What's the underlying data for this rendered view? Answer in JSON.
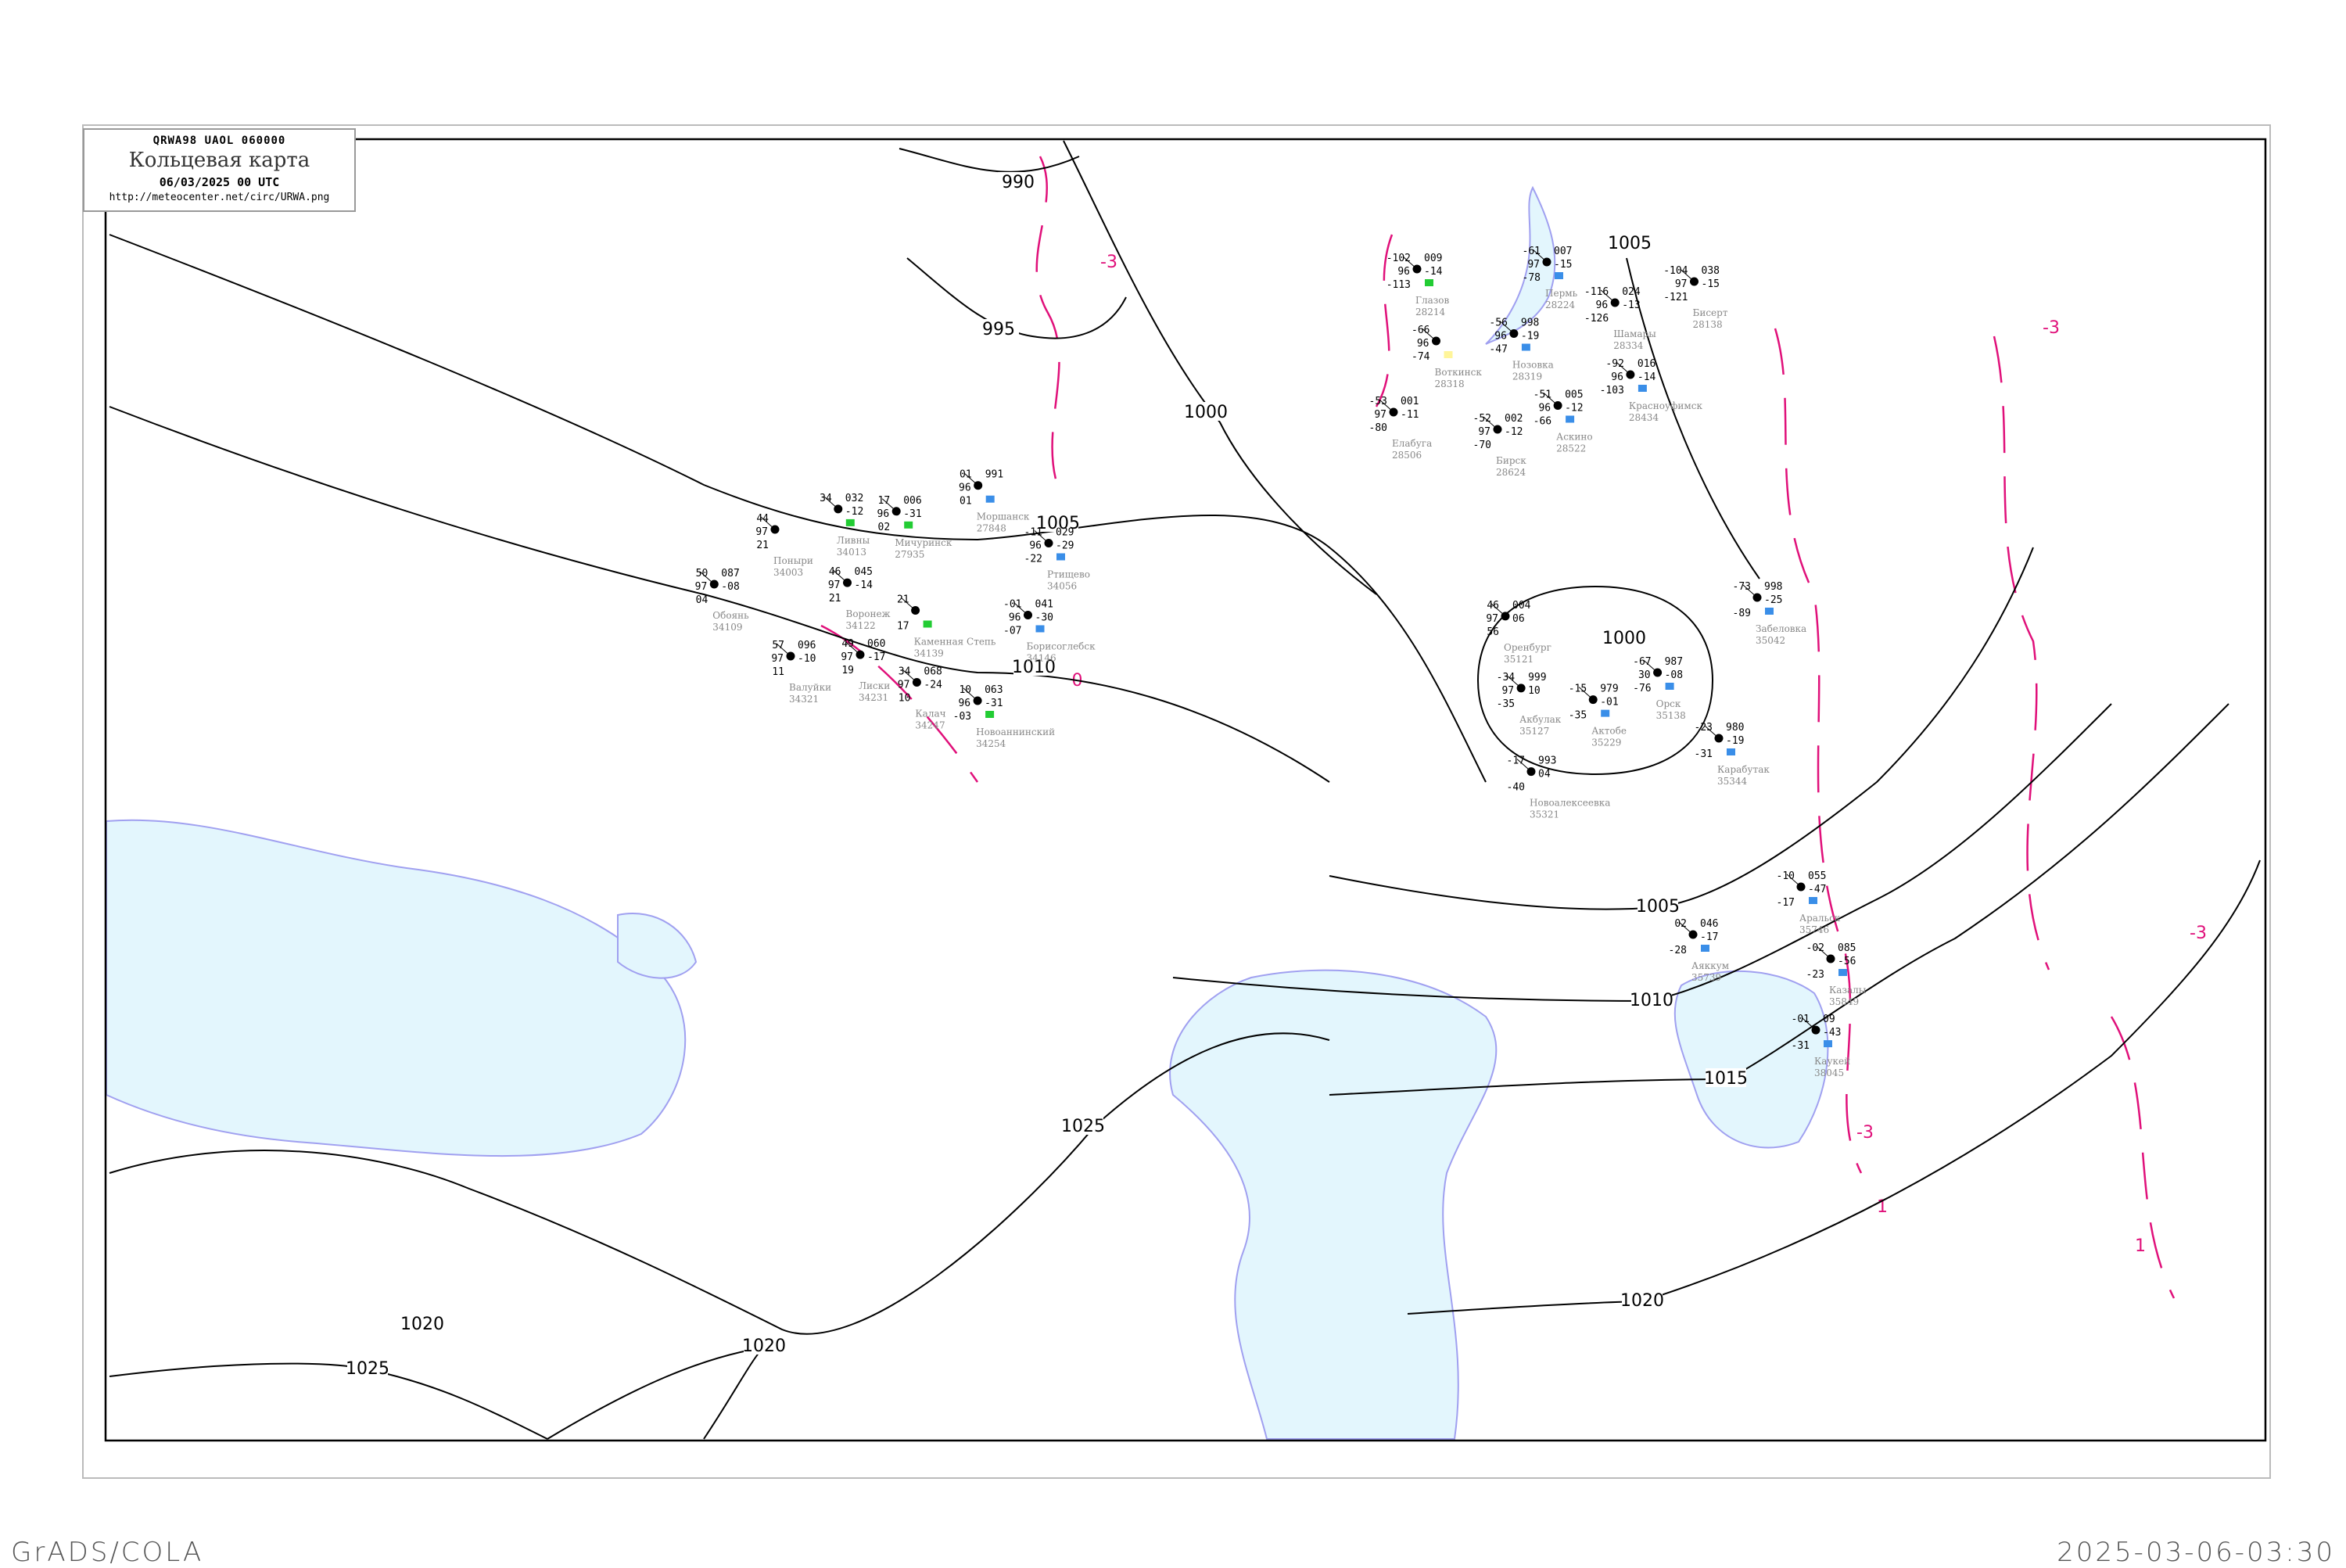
{
  "header": {
    "code": "QRWA98  UAOL  060000",
    "title": "Кольцевая карта",
    "date": "06/03/2025 00 UTC",
    "url": "http://meteocenter.net/circ/URWA.png"
  },
  "footer": {
    "left": "GrADS/COLA",
    "right": "2025-03-06-03:30"
  },
  "colors": {
    "isobar": "#000000",
    "isotherm": "#e0107a",
    "water": "#e3f6fd",
    "coast": "#a0a0f0",
    "river": "#1a9be8",
    "station_name": "#888888",
    "precip_snow": "#3a8ee8",
    "precip_green": "#22cc33",
    "precip_yellow": "#fff59a"
  },
  "isobars": [
    {
      "label": "990"
    },
    {
      "label": "995"
    },
    {
      "label": "1000"
    },
    {
      "label": "1005"
    },
    {
      "label": "1010"
    },
    {
      "label": "1025"
    },
    {
      "label": "1020"
    },
    {
      "label": "1005"
    },
    {
      "label": "1005"
    },
    {
      "label": "1010"
    },
    {
      "label": "1015"
    },
    {
      "label": "1020"
    },
    {
      "label": "1000"
    },
    {
      "label": "1025"
    },
    {
      "label": "1020"
    }
  ],
  "isotherm_labels": [
    "-3",
    "-3",
    "-3",
    "0",
    "1",
    "1",
    "-3"
  ],
  "stations": [
    {
      "name": "Пермь",
      "id": "28224",
      "t": "-61",
      "v": "97",
      "td": "-78",
      "p": "007",
      "dp": "-15",
      "precip": "snow"
    },
    {
      "name": "Воткинск",
      "id": "28318",
      "t": "-66",
      "v": "96",
      "td": "-74",
      "p": "",
      "dp": "",
      "precip": "yellow"
    },
    {
      "name": "Нозовка",
      "id": "28319",
      "t": "-56",
      "v": "96",
      "td": "-47",
      "p": "998",
      "dp": "-19",
      "precip": "snow"
    },
    {
      "name": "Глазов",
      "id": "28214",
      "t": "-102",
      "v": "96",
      "td": "-113",
      "p": "009",
      "dp": "-14",
      "precip": "green"
    },
    {
      "name": "Шамары",
      "id": "28334",
      "t": "-116",
      "v": "96",
      "td": "-126",
      "p": "024",
      "dp": "-13",
      "precip": ""
    },
    {
      "name": "Бисерт",
      "id": "28138",
      "t": "-104",
      "v": "97",
      "td": "-121",
      "p": "038",
      "dp": "-15",
      "precip": ""
    },
    {
      "name": "Красноуфимск",
      "id": "28434",
      "t": "-92",
      "v": "96",
      "td": "-103",
      "p": "016",
      "dp": "-14",
      "precip": "snow"
    },
    {
      "name": "Аскино",
      "id": "28522",
      "t": "-51",
      "v": "96",
      "td": "-66",
      "p": "005",
      "dp": "-12",
      "precip": "snow"
    },
    {
      "name": "Бирск",
      "id": "28624",
      "t": "-52",
      "v": "97",
      "td": "-70",
      "p": "002",
      "dp": "-12",
      "precip": ""
    },
    {
      "name": "Елабуга",
      "id": "28506",
      "t": "-53",
      "v": "97",
      "td": "-80",
      "p": "001",
      "dp": "-11",
      "precip": ""
    },
    {
      "name": "Забеловка",
      "id": "35042",
      "t": "-73",
      "v": "",
      "td": "-89",
      "p": "998",
      "dp": "-25",
      "precip": "snow"
    },
    {
      "name": "Оренбург",
      "id": "35121",
      "t": "46",
      "v": "97",
      "td": "56",
      "p": "004",
      "dp": "06",
      "precip": ""
    },
    {
      "name": "Акбулак",
      "id": "35127",
      "t": "-34",
      "v": "97",
      "td": "-35",
      "p": "999",
      "dp": "10",
      "precip": ""
    },
    {
      "name": "Орск",
      "id": "35138",
      "t": "-67",
      "v": "30",
      "td": "-76",
      "p": "987",
      "dp": "-08",
      "precip": "snow"
    },
    {
      "name": "Актобе",
      "id": "35229",
      "t": "-15",
      "v": "",
      "td": "-35",
      "p": "979",
      "dp": "-01",
      "precip": "snow"
    },
    {
      "name": "Новоалексеевка",
      "id": "35321",
      "t": "-17",
      "v": "",
      "td": "-40",
      "p": "993",
      "dp": "04",
      "precip": ""
    },
    {
      "name": "Карабутак",
      "id": "35344",
      "t": "-23",
      "v": "",
      "td": "-31",
      "p": "980",
      "dp": "-19",
      "precip": "snow"
    },
    {
      "name": "Аральск",
      "id": "35746",
      "t": "-10",
      "v": "",
      "td": "-17",
      "p": "055",
      "dp": "-47",
      "precip": "snow"
    },
    {
      "name": "Аяккум",
      "id": "35739",
      "t": "02",
      "v": "",
      "td": "-28",
      "p": "046",
      "dp": "-17",
      "precip": "snow"
    },
    {
      "name": "Казалы",
      "id": "35849",
      "t": "-02",
      "v": "",
      "td": "-23",
      "p": "085",
      "dp": "-56",
      "precip": "snow"
    },
    {
      "name": "Каукей",
      "id": "38045",
      "t": "-01",
      "v": "",
      "td": "-31",
      "p": "09",
      "dp": "-43",
      "precip": "snow"
    },
    {
      "name": "Поныри",
      "id": "34003",
      "t": "44",
      "v": "97",
      "td": "21",
      "p": "",
      "dp": "",
      "precip": ""
    },
    {
      "name": "Ливны",
      "id": "34013",
      "t": "34",
      "v": "",
      "td": "",
      "p": "032",
      "dp": "-12",
      "precip": "green"
    },
    {
      "name": "Мичуринск",
      "id": "27935",
      "t": "17",
      "v": "96",
      "td": "02",
      "p": "006",
      "dp": "-31",
      "precip": "green"
    },
    {
      "name": "Моршанск",
      "id": "27848",
      "t": "01",
      "v": "96",
      "td": "01",
      "p": "991",
      "dp": "",
      "precip": "snow"
    },
    {
      "name": "Обоянь",
      "id": "34109",
      "t": "50",
      "v": "97",
      "td": "04",
      "p": "087",
      "dp": "-08",
      "precip": ""
    },
    {
      "name": "Воронеж",
      "id": "34122",
      "t": "46",
      "v": "97",
      "td": "21",
      "p": "045",
      "dp": "-14",
      "precip": ""
    },
    {
      "name": "Лиски",
      "id": "34231",
      "t": "49",
      "v": "97",
      "td": "19",
      "p": "060",
      "dp": "-17",
      "precip": ""
    },
    {
      "name": "Каменная Степь",
      "id": "34139",
      "t": "21",
      "v": "",
      "td": "17",
      "p": "",
      "dp": "",
      "precip": "green"
    },
    {
      "name": "Борисоглебск",
      "id": "34146",
      "t": "-01",
      "v": "96",
      "td": "-07",
      "p": "041",
      "dp": "-30",
      "precip": "snow"
    },
    {
      "name": "Ртищево",
      "id": "34056",
      "t": "-11",
      "v": "96",
      "td": "-22",
      "p": "029",
      "dp": "-29",
      "precip": "snow"
    },
    {
      "name": "Калач",
      "id": "34247",
      "t": "34",
      "v": "97",
      "td": "10",
      "p": "068",
      "dp": "-24",
      "precip": ""
    },
    {
      "name": "Новоаннинский",
      "id": "34254",
      "t": "10",
      "v": "96",
      "td": "-03",
      "p": "063",
      "dp": "-31",
      "precip": "green"
    },
    {
      "name": "Валуйки",
      "id": "34321",
      "t": "57",
      "v": "97",
      "td": "11",
      "p": "096",
      "dp": "-10",
      "precip": ""
    }
  ]
}
